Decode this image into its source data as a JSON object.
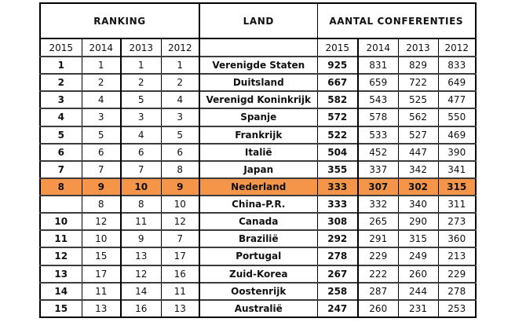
{
  "table": {
    "header_groups": {
      "ranking": "RANKING",
      "land": "LAND",
      "aantal": "AANTAL CONFERENTIES"
    },
    "ranking_years": [
      "2015",
      "2014",
      "2013",
      "2012"
    ],
    "aantal_years": [
      "2015",
      "2014",
      "2013",
      "2012"
    ],
    "highlight_color": "#F5954A",
    "rows": [
      {
        "ranking": [
          "1",
          "1",
          "1",
          "1"
        ],
        "land": "Verenigde Staten",
        "aantal": [
          "925",
          "831",
          "829",
          "833"
        ],
        "highlight": false
      },
      {
        "ranking": [
          "2",
          "2",
          "2",
          "2"
        ],
        "land": "Duitsland",
        "aantal": [
          "667",
          "659",
          "722",
          "649"
        ],
        "highlight": false
      },
      {
        "ranking": [
          "3",
          "4",
          "5",
          "4"
        ],
        "land": "Verenigd Koninkrijk",
        "aantal": [
          "582",
          "543",
          "525",
          "477"
        ],
        "highlight": false
      },
      {
        "ranking": [
          "4",
          "3",
          "3",
          "3"
        ],
        "land": "Spanje",
        "aantal": [
          "572",
          "578",
          "562",
          "550"
        ],
        "highlight": false
      },
      {
        "ranking": [
          "5",
          "5",
          "4",
          "5"
        ],
        "land": "Frankrijk",
        "aantal": [
          "522",
          "533",
          "527",
          "469"
        ],
        "highlight": false
      },
      {
        "ranking": [
          "6",
          "6",
          "6",
          "6"
        ],
        "land": "Italië",
        "aantal": [
          "504",
          "452",
          "447",
          "390"
        ],
        "highlight": false
      },
      {
        "ranking": [
          "7",
          "7",
          "7",
          "8"
        ],
        "land": "Japan",
        "aantal": [
          "355",
          "337",
          "342",
          "341"
        ],
        "highlight": false
      },
      {
        "ranking": [
          "8",
          "9",
          "10",
          "9"
        ],
        "land": "Nederland",
        "aantal": [
          "333",
          "307",
          "302",
          "315"
        ],
        "highlight": true
      },
      {
        "ranking": [
          "",
          "8",
          "8",
          "10"
        ],
        "land": "China-P.R.",
        "aantal": [
          "333",
          "332",
          "340",
          "311"
        ],
        "highlight": false
      },
      {
        "ranking": [
          "10",
          "12",
          "11",
          "12"
        ],
        "land": "Canada",
        "aantal": [
          "308",
          "265",
          "290",
          "273"
        ],
        "highlight": false
      },
      {
        "ranking": [
          "11",
          "10",
          "9",
          "7"
        ],
        "land": "Brazilië",
        "aantal": [
          "292",
          "291",
          "315",
          "360"
        ],
        "highlight": false
      },
      {
        "ranking": [
          "12",
          "15",
          "13",
          "17"
        ],
        "land": "Portugal",
        "aantal": [
          "278",
          "229",
          "249",
          "213"
        ],
        "highlight": false
      },
      {
        "ranking": [
          "13",
          "17",
          "12",
          "16"
        ],
        "land": "Zuid-Korea",
        "aantal": [
          "267",
          "222",
          "260",
          "229"
        ],
        "highlight": false
      },
      {
        "ranking": [
          "14",
          "11",
          "14",
          "11"
        ],
        "land": "Oostenrijk",
        "aantal": [
          "258",
          "287",
          "244",
          "278"
        ],
        "highlight": false
      },
      {
        "ranking": [
          "15",
          "13",
          "16",
          "13"
        ],
        "land": "Australië",
        "aantal": [
          "247",
          "260",
          "231",
          "253"
        ],
        "highlight": false
      }
    ]
  }
}
